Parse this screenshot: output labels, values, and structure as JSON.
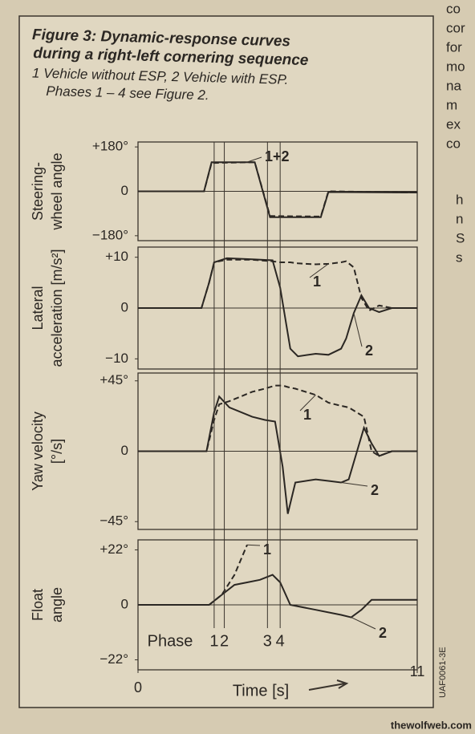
{
  "figure": {
    "title": [
      "Figure 3: Dynamic-response curves",
      "during a right-left cornering sequence"
    ],
    "caption": [
      "1 Vehicle without ESP, 2 Vehicle with ESP.",
      "Phases 1 – 4 see Figure 2."
    ],
    "code": "UAF0061-3E",
    "phases": {
      "label": "Phase",
      "lines": [
        {
          "value": 3.0,
          "label": "1"
        },
        {
          "value": 3.4,
          "label": "2"
        },
        {
          "value": 5.1,
          "label": "3"
        },
        {
          "value": 5.6,
          "label": "4"
        }
      ]
    },
    "page_fragments": [
      "co",
      "cor",
      "for",
      "mo",
      "na",
      "m",
      "ex",
      "co",
      "h",
      "n",
      "S",
      "s"
    ],
    "watermark": "thewolfweb.com"
  },
  "chart_data": [
    {
      "type": "line",
      "ylabel": [
        "Steering-",
        "wheel angle"
      ],
      "annotation": "1+2",
      "xlim": [
        0,
        11
      ],
      "ylim": [
        -200,
        200
      ],
      "yticks": [
        {
          "value": -180,
          "label": "−180°"
        },
        0,
        {
          "value": 180,
          "label": "+180°"
        }
      ],
      "x": [
        0,
        2.6,
        2.9,
        4.6,
        5.2,
        7.2,
        7.5,
        11
      ],
      "series": [
        {
          "color": "#2b2723",
          "dash": true,
          "values": [
            0,
            0,
            115,
            118,
            -100,
            -102,
            0,
            -5
          ]
        },
        {
          "color": "#2b2723",
          "dash": false,
          "values": [
            0,
            0,
            118,
            118,
            -105,
            -105,
            -3,
            -5
          ]
        }
      ]
    },
    {
      "type": "line",
      "ylabel": [
        "Lateral",
        "acceleration [m/s²]"
      ],
      "xlim": [
        0,
        11
      ],
      "ylim": [
        -12,
        12
      ],
      "yticks": [
        {
          "value": -10,
          "label": "−10"
        },
        0,
        {
          "value": 10,
          "label": "+10"
        }
      ],
      "x": [
        0,
        2.5,
        2.8,
        3.0,
        3.5,
        4.5,
        5.3,
        5.6,
        6.0,
        6.3,
        7.0,
        7.5,
        8.0,
        8.2,
        8.5,
        8.8,
        9.1,
        9.5,
        10,
        11
      ],
      "series": [
        {
          "name": "1",
          "color": "#2b2723",
          "dash": true,
          "values": [
            0,
            0,
            5,
            9,
            9.5,
            9.5,
            9.2,
            9.0,
            9.0,
            8.8,
            8.6,
            8.7,
            9.0,
            9.2,
            8.0,
            2,
            -0.5,
            0.5,
            0,
            0
          ]
        },
        {
          "name": "2",
          "color": "#2b2723",
          "dash": false,
          "values": [
            0,
            0,
            5,
            9,
            9.8,
            9.6,
            9.4,
            4,
            -8,
            -9.5,
            -9.0,
            -9.2,
            -8,
            -6,
            -1,
            2.5,
            0,
            -0.8,
            0,
            0
          ]
        }
      ]
    },
    {
      "type": "line",
      "ylabel": [
        "Yaw velocity",
        "[°/s]"
      ],
      "xlim": [
        0,
        11
      ],
      "ylim": [
        -50,
        50
      ],
      "yticks": [
        {
          "value": -45,
          "label": "−45°"
        },
        0,
        {
          "value": 45,
          "label": "+45°"
        }
      ],
      "x": [
        0,
        2.7,
        3.0,
        3.2,
        3.6,
        4.5,
        5.0,
        5.4,
        5.7,
        5.9,
        6.2,
        7.0,
        7.5,
        8.0,
        8.3,
        8.9,
        9.2,
        9.5,
        10,
        11
      ],
      "series": [
        {
          "name": "1",
          "color": "#2b2723",
          "dash": true,
          "values": [
            0,
            0,
            20,
            30,
            32,
            38,
            40,
            42,
            42,
            41,
            40,
            36,
            31,
            29,
            28,
            22,
            0,
            -3,
            0,
            0
          ]
        },
        {
          "name": "2",
          "color": "#2b2723",
          "dash": false,
          "values": [
            0,
            0,
            25,
            35,
            28,
            22,
            20,
            19,
            -10,
            -40,
            -20,
            -18,
            -19,
            -20,
            -18,
            15,
            5,
            -3,
            0,
            0
          ]
        }
      ]
    },
    {
      "type": "line",
      "ylabel": [
        "Float",
        "angle"
      ],
      "xlim": [
        0,
        11
      ],
      "ylim": [
        -26,
        26
      ],
      "xticks": [
        0,
        11
      ],
      "xlabel": "Time [s]",
      "yticks": [
        {
          "value": -22,
          "label": "−22°"
        },
        0,
        {
          "value": 22,
          "label": "+22°"
        }
      ],
      "x": [
        0,
        2.8,
        3.3,
        3.8,
        4.3,
        4.8,
        5.3,
        5.6,
        6.0,
        7.0,
        8.0,
        8.4,
        8.8,
        9.2,
        10,
        11
      ],
      "series": [
        {
          "name": "1",
          "color": "#2b2723",
          "dash": true,
          "values": [
            0,
            0,
            4,
            12,
            24,
            null,
            null,
            null,
            null,
            null,
            null,
            null,
            null,
            null,
            null,
            null
          ]
        },
        {
          "name": "2",
          "color": "#2b2723",
          "dash": false,
          "values": [
            0,
            0,
            4,
            8,
            9,
            10,
            12,
            9,
            0,
            -2,
            -4,
            -5,
            -2,
            2,
            2,
            2
          ]
        }
      ]
    }
  ]
}
